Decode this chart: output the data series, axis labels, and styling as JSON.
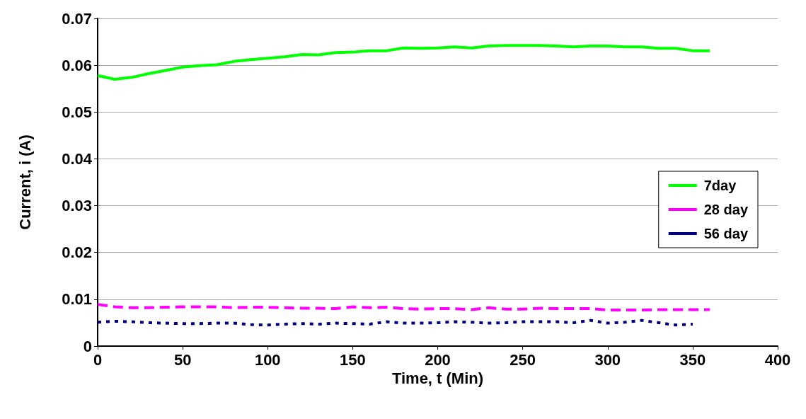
{
  "chart_data": {
    "type": "line",
    "xlabel": "Time, t (Min)",
    "ylabel": "Current, i (A)",
    "x": [
      0,
      10,
      20,
      30,
      40,
      50,
      60,
      70,
      80,
      90,
      100,
      110,
      120,
      130,
      140,
      150,
      160,
      170,
      180,
      190,
      200,
      210,
      220,
      230,
      240,
      250,
      260,
      270,
      280,
      290,
      300,
      310,
      320,
      330,
      340,
      350,
      360
    ],
    "xlim": [
      0,
      400
    ],
    "xticks": [
      0,
      50,
      100,
      150,
      200,
      250,
      300,
      350,
      400
    ],
    "ylim": [
      0,
      0.07
    ],
    "yticks": [
      0,
      0.01,
      0.02,
      0.03,
      0.04,
      0.05,
      0.06,
      0.07
    ],
    "grid": "y",
    "legend": "right",
    "marker": "none",
    "series": [
      {
        "name": "7day",
        "color": "#00ff00",
        "line_style": "solid",
        "values": [
          0.0578,
          0.057,
          0.0574,
          0.0582,
          0.0589,
          0.0596,
          0.0599,
          0.0601,
          0.0608,
          0.0612,
          0.0615,
          0.0618,
          0.0623,
          0.0622,
          0.0627,
          0.0628,
          0.0631,
          0.0631,
          0.0637,
          0.0636,
          0.0637,
          0.0639,
          0.0637,
          0.0641,
          0.0642,
          0.0642,
          0.0642,
          0.0641,
          0.0639,
          0.0641,
          0.0641,
          0.0639,
          0.0639,
          0.0636,
          0.0636,
          0.0631,
          0.0631
        ]
      },
      {
        "name": "28 day",
        "color": "#ff00ff",
        "line_style": "dashed",
        "values": [
          0.0089,
          0.0084,
          0.0082,
          0.0082,
          0.0083,
          0.0084,
          0.0084,
          0.0084,
          0.0082,
          0.0083,
          0.0083,
          0.0082,
          0.0081,
          0.0081,
          0.008,
          0.0084,
          0.0082,
          0.0083,
          0.008,
          0.0079,
          0.008,
          0.008,
          0.0078,
          0.0082,
          0.0079,
          0.0079,
          0.0081,
          0.008,
          0.008,
          0.008,
          0.0077,
          0.0077,
          0.0077,
          0.0078,
          0.0078,
          0.0078,
          0.0078
        ]
      },
      {
        "name": "56 day",
        "color": "#000080",
        "line_style": "dotted",
        "values": [
          0.0051,
          0.0053,
          0.0052,
          0.005,
          0.0049,
          0.0048,
          0.0048,
          0.0049,
          0.0049,
          0.0046,
          0.0045,
          0.0047,
          0.0048,
          0.0047,
          0.0049,
          0.0048,
          0.0047,
          0.0052,
          0.0049,
          0.0049,
          0.005,
          0.0052,
          0.0051,
          0.0049,
          0.005,
          0.0052,
          0.0052,
          0.0052,
          0.005,
          0.0055,
          0.0049,
          0.0051,
          0.0055,
          0.005,
          0.0045,
          0.0047,
          null
        ]
      }
    ]
  }
}
